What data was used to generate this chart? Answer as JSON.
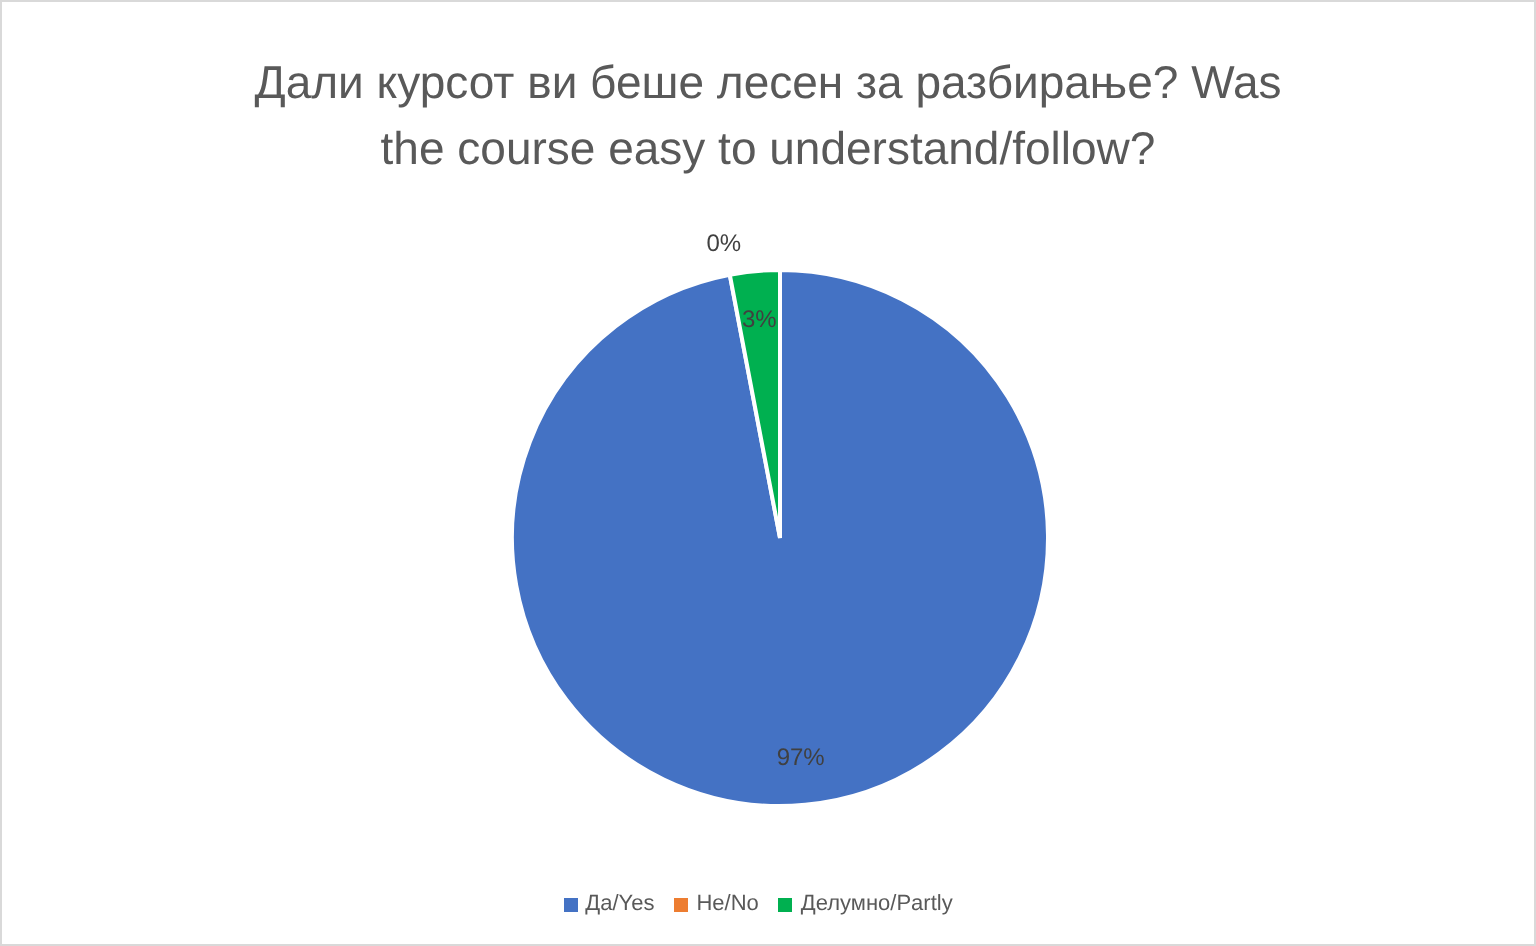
{
  "chart_data": {
    "type": "pie",
    "title": "Дали курсот ви беше лесен за разбирање? Was the course easy to understand/follow?",
    "categories": [
      "Да/Yes",
      "Не/No",
      "Делумно/Partly"
    ],
    "values": [
      97,
      0,
      3
    ],
    "colors": [
      "#4472c4",
      "#ed7d31",
      "#00b050"
    ],
    "value_labels": [
      "97%",
      "0%",
      "3%"
    ],
    "legend": "bottom"
  }
}
